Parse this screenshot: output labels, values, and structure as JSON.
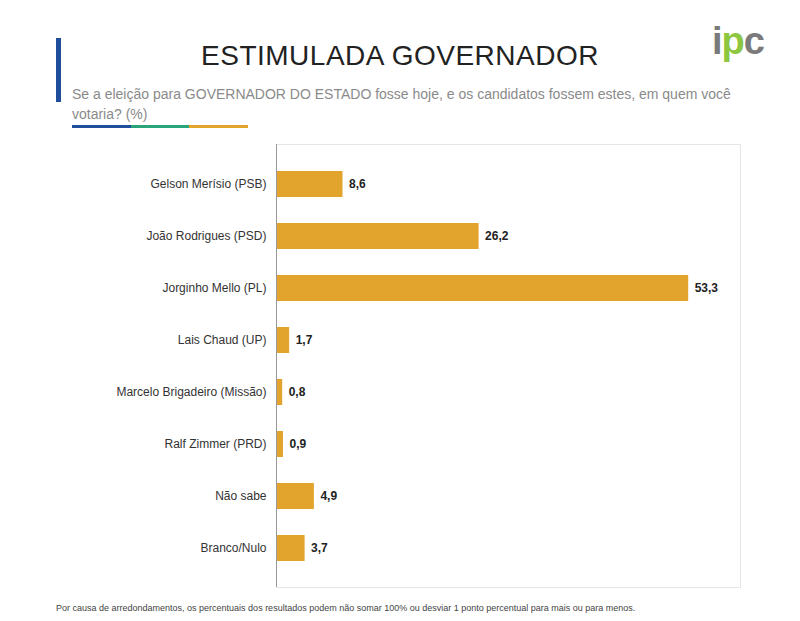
{
  "chart_data": {
    "type": "bar",
    "orientation": "horizontal",
    "title": "ESTIMULADA GOVERNADOR",
    "subtitle": "Se a eleição para GOVERNADOR DO ESTADO fosse hoje, e os candidatos fossem estes, em quem você votaria? (%)",
    "logo": "ipc",
    "note": "Por causa de arredondamentos, os percentuais dos resultados podem não somar 100% ou desviar 1 ponto percentual para mais ou para menos.",
    "categories": [
      "Gelson Merísio (PSB)",
      "João Rodrigues (PSD)",
      "Jorginho Mello (PL)",
      "Lais Chaud (UP)",
      "Marcelo Brigadeiro (Missão)",
      "Ralf Zimmer (PRD)",
      "Não sabe",
      "Branco/Nulo"
    ],
    "values": [
      8.6,
      26.2,
      53.3,
      1.7,
      0.8,
      0.9,
      4.9,
      3.7
    ],
    "value_labels": [
      "8,6",
      "26,2",
      "53,3",
      "1,7",
      "0,8",
      "0,9",
      "4,9",
      "3,7"
    ],
    "data_labels": true,
    "color": "#e2a42d",
    "xlim": [
      0,
      60
    ],
    "tick_labels": "y",
    "grid": false
  }
}
